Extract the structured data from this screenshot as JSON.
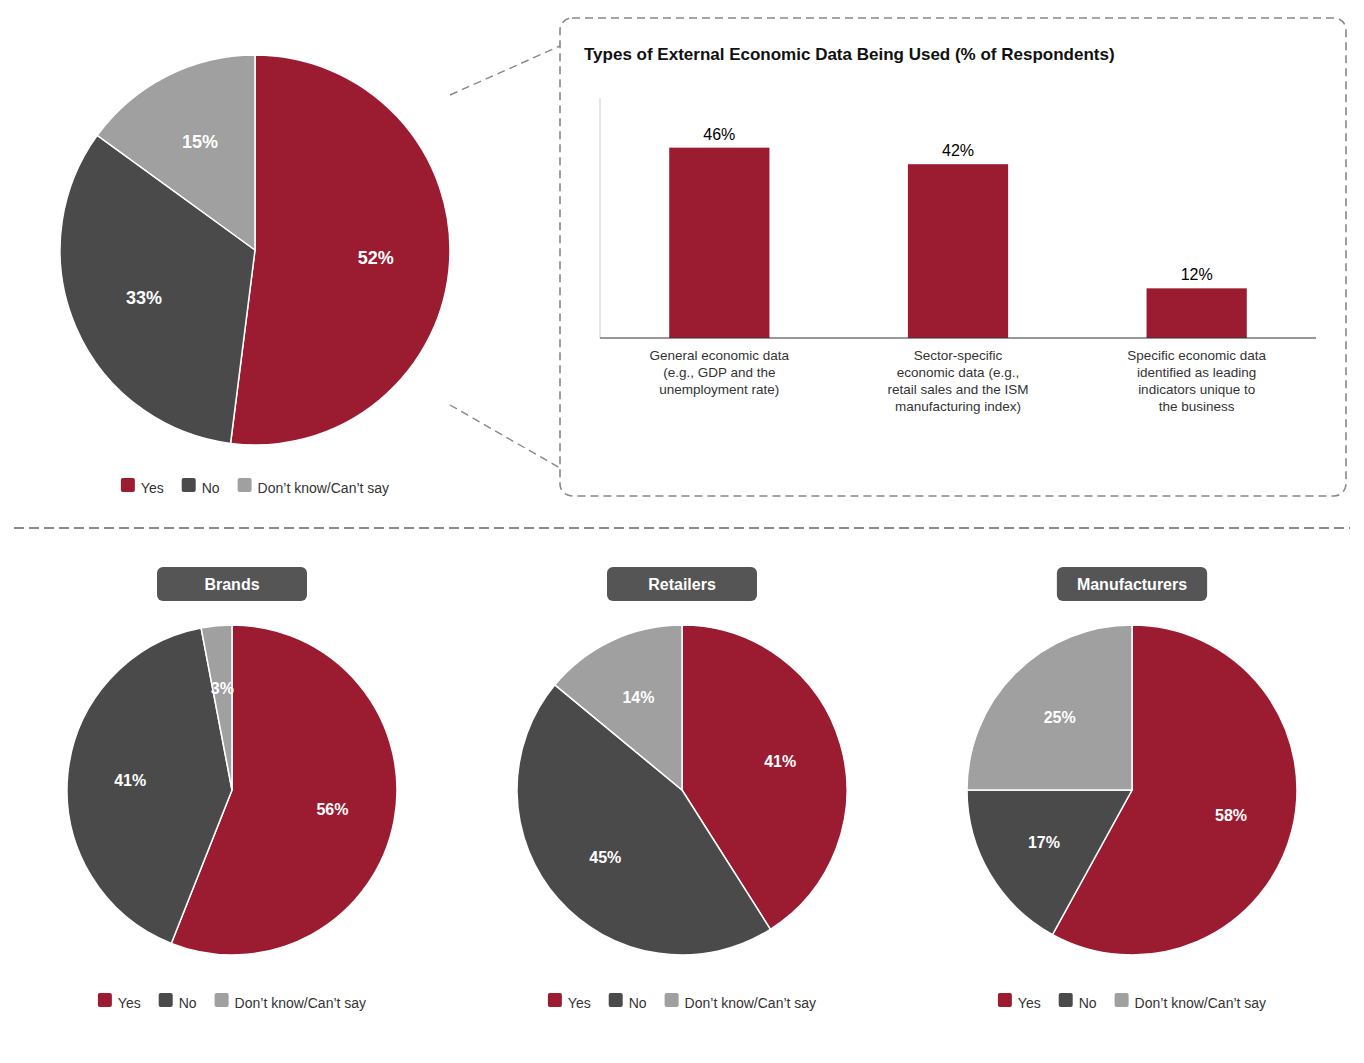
{
  "chart_data": [
    {
      "type": "pie",
      "categories": [
        "Yes",
        "No",
        "Don’t know/Can’t say"
      ],
      "values": [
        52,
        33,
        15
      ],
      "value_labels": [
        "52%",
        "33%",
        "15%"
      ],
      "colors": [
        "#9B1B30",
        "#4A4A4A",
        "#A0A0A0"
      ],
      "data_labels": true,
      "legend": "bottom"
    },
    {
      "type": "bar",
      "title": "Types of External Economic Data Being Used (% of Respondents)",
      "categories": [
        "General economic data\n(e.g., GDP and the\nunemployment rate)",
        "Sector-specific\neconomic data (e.g.,\nretail sales and the ISM\nmanufacturing index)",
        "Specific economic data\nidentified as leading\nindicators unique to\nthe business"
      ],
      "values": [
        46,
        42,
        12
      ],
      "value_labels": [
        "46%",
        "42%",
        "12%"
      ],
      "color": "#9B1B30",
      "ylim": [
        0,
        58
      ],
      "tick_labels": "x",
      "grid": false,
      "data_labels": true
    },
    {
      "type": "pie",
      "title": "Brands",
      "categories": [
        "Yes",
        "No",
        "Don’t know/Can’t say"
      ],
      "values": [
        56,
        41,
        3
      ],
      "value_labels": [
        "56%",
        "41%",
        "3%"
      ],
      "colors": [
        "#9B1B30",
        "#4A4A4A",
        "#A0A0A0"
      ],
      "data_labels": true,
      "legend": "bottom"
    },
    {
      "type": "pie",
      "title": "Retailers",
      "categories": [
        "Yes",
        "No",
        "Don’t know/Can’t say"
      ],
      "values": [
        41,
        45,
        14
      ],
      "value_labels": [
        "41%",
        "45%",
        "14%"
      ],
      "colors": [
        "#9B1B30",
        "#4A4A4A",
        "#A0A0A0"
      ],
      "data_labels": true,
      "legend": "bottom"
    },
    {
      "type": "pie",
      "title": "Manufacturers",
      "categories": [
        "Yes",
        "No",
        "Don’t know/Can’t say"
      ],
      "values": [
        58,
        17,
        25
      ],
      "value_labels": [
        "58%",
        "17%",
        "25%"
      ],
      "colors": [
        "#9B1B30",
        "#4A4A4A",
        "#A0A0A0"
      ],
      "data_labels": true,
      "legend": "bottom"
    }
  ]
}
